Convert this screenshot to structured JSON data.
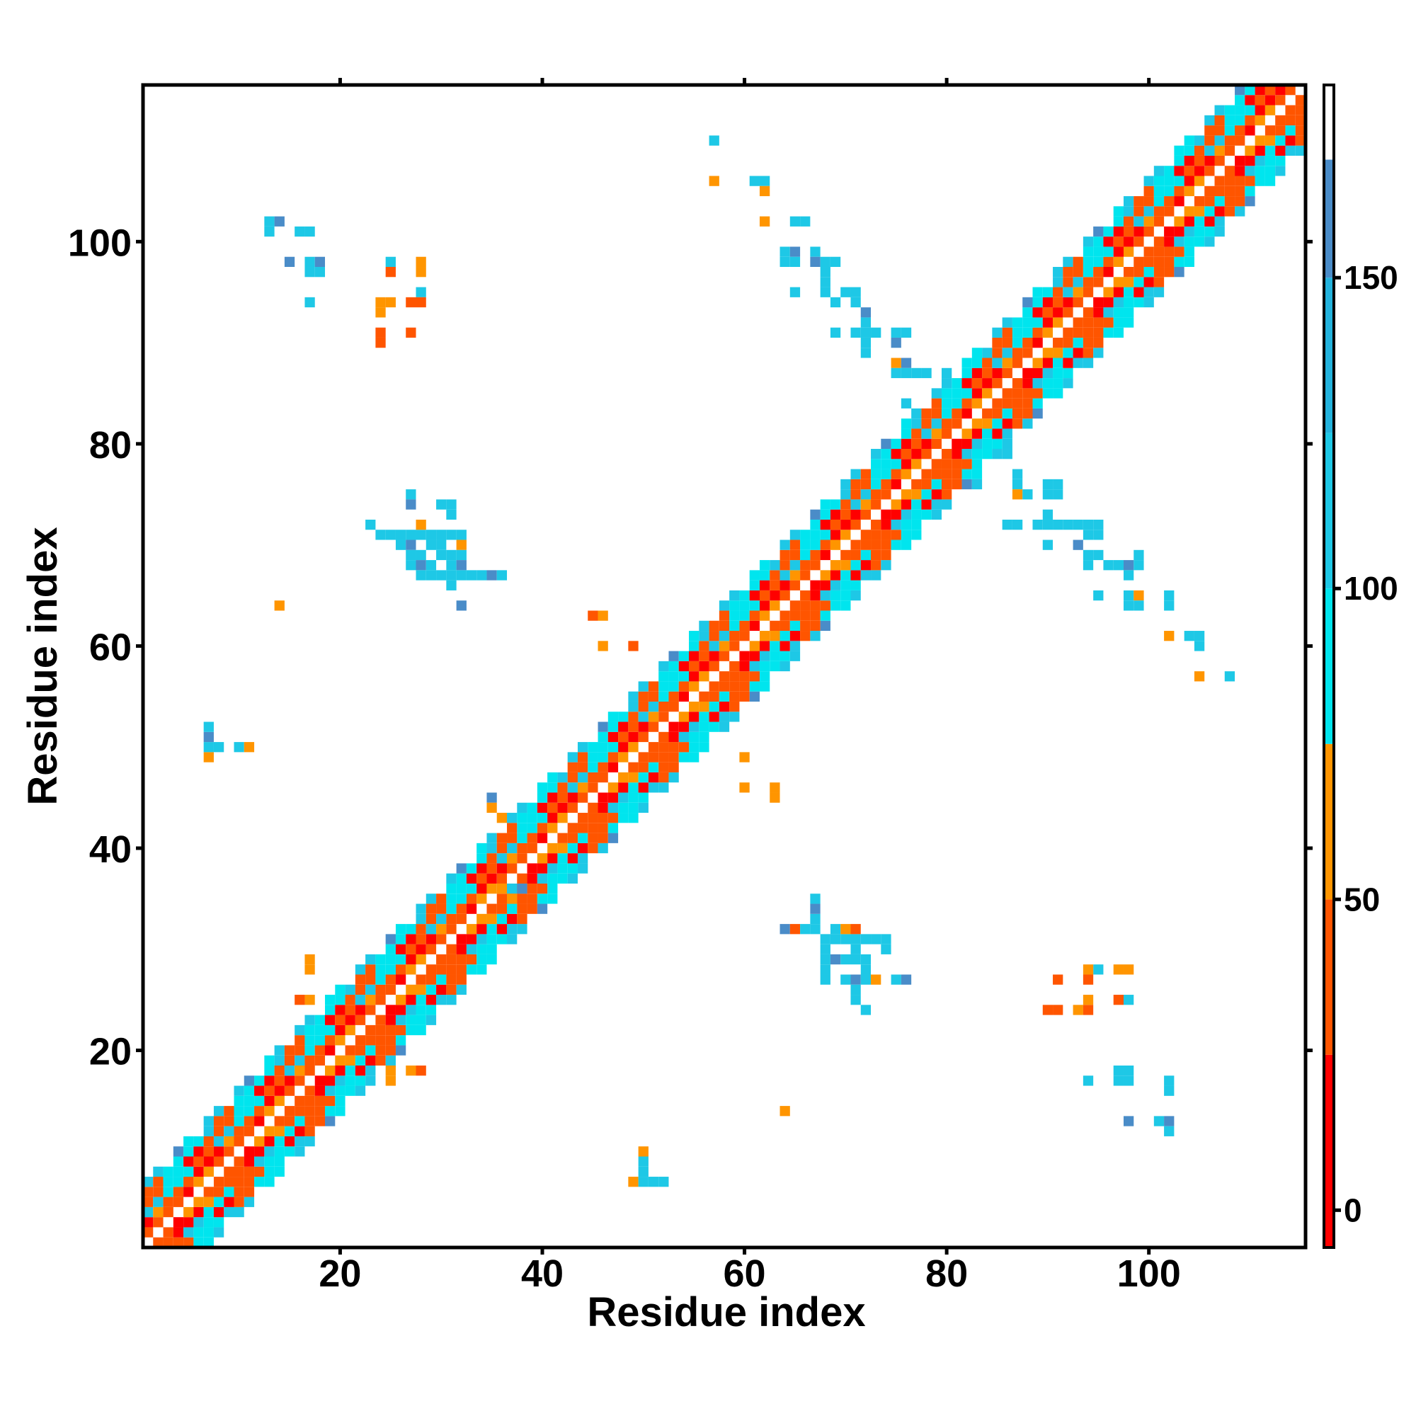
{
  "chart_data": {
    "type": "heatmap",
    "title": "",
    "xlabel": "Residue index",
    "ylabel": "Residue index",
    "x_range": [
      0.5,
      115.5
    ],
    "y_range": [
      0.5,
      115.5
    ],
    "x_ticks": [
      20,
      40,
      60,
      80,
      100
    ],
    "y_ticks": [
      20,
      40,
      60,
      80,
      100
    ],
    "x_tick_labels": [
      "20",
      "40",
      "60",
      "80",
      "100"
    ],
    "y_tick_labels": [
      "20",
      "40",
      "60",
      "80",
      "100"
    ],
    "grid": false,
    "legend": "colorbar-right",
    "colorbar": {
      "range": [
        -6,
        181
      ],
      "ticks": [
        0,
        50,
        100,
        150
      ],
      "tick_labels": [
        "0",
        "50",
        "100",
        "150"
      ],
      "bands": [
        {
          "from": -6,
          "to": 25,
          "color": "#ff0000"
        },
        {
          "from": 25,
          "to": 50,
          "color": "#ff5500"
        },
        {
          "from": 50,
          "to": 75,
          "color": "#ff9500"
        },
        {
          "from": 75,
          "to": 100,
          "color": "#00e5ee"
        },
        {
          "from": 100,
          "to": 125,
          "color": "#1ec8e6"
        },
        {
          "from": 125,
          "to": 150,
          "color": "#23b2dc"
        },
        {
          "from": 150,
          "to": 169,
          "color": "#4a8cc8"
        },
        {
          "from": 169,
          "to": 181,
          "color": "#ffffff"
        }
      ]
    },
    "diagonal_band": {
      "start": 1,
      "end": 115,
      "half_width": 6
    },
    "cells": [
      [
        64,
        32,
        150
      ],
      [
        65,
        32,
        40
      ],
      [
        66,
        32,
        100
      ],
      [
        67,
        32,
        100
      ],
      [
        67,
        33,
        100
      ],
      [
        67,
        34,
        160
      ],
      [
        67,
        35,
        100
      ],
      [
        68,
        31,
        110
      ],
      [
        69,
        31,
        100
      ],
      [
        70,
        31,
        100
      ],
      [
        71,
        31,
        100
      ],
      [
        72,
        31,
        110
      ],
      [
        73,
        31,
        100
      ],
      [
        74,
        31,
        100
      ],
      [
        69,
        32,
        110
      ],
      [
        70,
        32,
        60
      ],
      [
        71,
        32,
        40
      ],
      [
        68,
        30,
        110
      ],
      [
        71,
        30,
        100
      ],
      [
        74,
        30,
        100
      ],
      [
        68,
        29,
        100
      ],
      [
        69,
        29,
        150
      ],
      [
        70,
        29,
        110
      ],
      [
        71,
        29,
        100
      ],
      [
        72,
        29,
        110
      ],
      [
        68,
        28,
        100
      ],
      [
        72,
        28,
        100
      ],
      [
        68,
        27,
        100
      ],
      [
        70,
        27,
        100
      ],
      [
        71,
        27,
        160
      ],
      [
        72,
        27,
        100
      ],
      [
        73,
        27,
        60
      ],
      [
        75,
        27,
        110
      ],
      [
        76,
        27,
        150
      ],
      [
        71,
        26,
        100
      ],
      [
        71,
        25,
        110
      ],
      [
        72,
        24,
        100
      ],
      [
        91,
        27,
        30
      ],
      [
        94,
        27,
        40
      ],
      [
        95,
        28,
        100
      ],
      [
        94,
        28,
        60
      ],
      [
        97,
        28,
        50
      ],
      [
        98,
        28,
        60
      ],
      [
        90,
        24,
        40
      ],
      [
        91,
        24,
        40
      ],
      [
        93,
        24,
        60
      ],
      [
        94,
        24,
        40
      ],
      [
        94,
        25,
        60
      ],
      [
        97,
        25,
        30
      ],
      [
        98,
        25,
        100
      ],
      [
        94,
        17,
        100
      ],
      [
        97,
        17,
        100
      ],
      [
        98,
        17,
        100
      ],
      [
        97,
        18,
        110
      ],
      [
        98,
        18,
        100
      ],
      [
        102,
        17,
        100
      ],
      [
        102,
        16,
        110
      ],
      [
        98,
        13,
        150
      ],
      [
        101,
        13,
        100
      ],
      [
        102,
        13,
        150
      ],
      [
        102,
        12,
        100
      ],
      [
        64,
        14,
        60
      ],
      [
        50,
        10,
        60
      ],
      [
        50,
        9,
        100
      ],
      [
        49,
        7,
        60
      ],
      [
        50,
        7,
        100
      ],
      [
        51,
        7,
        110
      ],
      [
        52,
        7,
        110
      ],
      [
        50,
        8,
        100
      ],
      [
        60,
        49,
        50
      ],
      [
        60,
        46,
        60
      ],
      [
        63,
        46,
        50
      ],
      [
        63,
        45,
        50
      ],
      [
        45,
        63,
        40
      ],
      [
        46,
        63,
        50
      ],
      [
        46,
        60,
        60
      ],
      [
        49,
        60,
        40
      ],
      [
        14,
        64,
        60
      ],
      [
        7,
        49,
        60
      ],
      [
        7,
        50,
        100
      ],
      [
        7,
        51,
        150
      ],
      [
        7,
        52,
        110
      ],
      [
        8,
        50,
        100
      ],
      [
        10,
        50,
        110
      ],
      [
        11,
        50,
        60
      ],
      [
        27,
        75,
        100
      ],
      [
        27,
        74,
        150
      ],
      [
        30,
        74,
        100
      ],
      [
        31,
        74,
        100
      ],
      [
        31,
        73,
        110
      ],
      [
        23,
        72,
        100
      ],
      [
        24,
        71,
        100
      ],
      [
        25,
        71,
        110
      ],
      [
        26,
        71,
        100
      ],
      [
        27,
        71,
        100
      ],
      [
        28,
        71,
        110
      ],
      [
        29,
        71,
        100
      ],
      [
        30,
        71,
        100
      ],
      [
        31,
        71,
        100
      ],
      [
        32,
        71,
        100
      ],
      [
        26,
        70,
        100
      ],
      [
        27,
        70,
        150
      ],
      [
        29,
        70,
        100
      ],
      [
        30,
        70,
        100
      ],
      [
        32,
        70,
        60
      ],
      [
        27,
        69,
        110
      ],
      [
        28,
        69,
        100
      ],
      [
        30,
        69,
        110
      ],
      [
        31,
        69,
        100
      ],
      [
        32,
        69,
        100
      ],
      [
        27,
        68,
        100
      ],
      [
        28,
        68,
        150
      ],
      [
        29,
        68,
        100
      ],
      [
        31,
        68,
        100
      ],
      [
        32,
        68,
        150
      ],
      [
        28,
        67,
        100
      ],
      [
        29,
        67,
        100
      ],
      [
        30,
        67,
        110
      ],
      [
        31,
        67,
        100
      ],
      [
        32,
        67,
        110
      ],
      [
        33,
        67,
        110
      ],
      [
        34,
        67,
        100
      ],
      [
        35,
        67,
        150
      ],
      [
        36,
        67,
        110
      ],
      [
        31,
        66,
        100
      ],
      [
        32,
        64,
        150
      ],
      [
        28,
        72,
        60
      ],
      [
        13,
        102,
        100
      ],
      [
        14,
        102,
        150
      ],
      [
        16,
        101,
        100
      ],
      [
        17,
        101,
        100
      ],
      [
        13,
        101,
        100
      ],
      [
        15,
        98,
        150
      ],
      [
        17,
        98,
        100
      ],
      [
        18,
        98,
        150
      ],
      [
        17,
        97,
        100
      ],
      [
        18,
        97,
        100
      ],
      [
        17,
        94,
        100
      ],
      [
        25,
        98,
        100
      ],
      [
        25,
        97,
        30
      ],
      [
        28,
        98,
        50
      ],
      [
        28,
        97,
        50
      ],
      [
        28,
        95,
        100
      ],
      [
        24,
        94,
        50
      ],
      [
        25,
        94,
        50
      ],
      [
        27,
        94,
        40
      ],
      [
        28,
        94,
        40
      ],
      [
        24,
        93,
        60
      ],
      [
        24,
        91,
        40
      ],
      [
        24,
        90,
        40
      ],
      [
        27,
        91,
        30
      ],
      [
        57,
        110,
        100
      ],
      [
        57,
        106,
        60
      ],
      [
        61,
        106,
        100
      ],
      [
        62,
        106,
        100
      ],
      [
        62,
        105,
        60
      ],
      [
        62,
        102,
        60
      ],
      [
        65,
        102,
        100
      ],
      [
        66,
        102,
        100
      ],
      [
        64,
        99,
        100
      ],
      [
        64,
        98,
        100
      ],
      [
        65,
        99,
        150
      ],
      [
        65,
        98,
        110
      ],
      [
        67,
        99,
        100
      ],
      [
        67,
        98,
        150
      ],
      [
        68,
        98,
        100
      ],
      [
        69,
        98,
        100
      ],
      [
        68,
        97,
        100
      ],
      [
        65,
        95,
        100
      ],
      [
        68,
        96,
        100
      ],
      [
        68,
        95,
        100
      ],
      [
        69,
        94,
        100
      ],
      [
        70,
        95,
        100
      ],
      [
        71,
        95,
        100
      ],
      [
        71,
        94,
        100
      ],
      [
        72,
        93,
        150
      ],
      [
        72,
        92,
        110
      ],
      [
        72,
        91,
        100
      ],
      [
        73,
        91,
        100
      ],
      [
        69,
        91,
        100
      ],
      [
        71,
        91,
        100
      ],
      [
        72,
        90,
        100
      ],
      [
        75,
        91,
        110
      ],
      [
        75,
        90,
        150
      ],
      [
        76,
        91,
        100
      ],
      [
        72,
        89,
        100
      ],
      [
        75,
        88,
        60
      ],
      [
        76,
        88,
        150
      ],
      [
        75,
        87,
        100
      ],
      [
        76,
        87,
        100
      ],
      [
        77,
        87,
        100
      ],
      [
        78,
        87,
        110
      ],
      [
        80,
        87,
        100
      ],
      [
        76,
        84,
        100
      ],
      [
        83,
        76,
        110
      ],
      [
        86,
        79,
        100
      ],
      [
        87,
        76,
        100
      ],
      [
        87,
        77,
        100
      ],
      [
        87,
        75,
        60
      ],
      [
        88,
        75,
        110
      ],
      [
        90,
        76,
        100
      ],
      [
        91,
        76,
        110
      ],
      [
        90,
        75,
        110
      ],
      [
        91,
        75,
        100
      ],
      [
        86,
        72,
        100
      ],
      [
        87,
        72,
        100
      ],
      [
        89,
        72,
        100
      ],
      [
        90,
        72,
        100
      ],
      [
        90,
        73,
        110
      ],
      [
        91,
        72,
        100
      ],
      [
        92,
        72,
        100
      ],
      [
        93,
        72,
        100
      ],
      [
        94,
        72,
        110
      ],
      [
        95,
        72,
        100
      ],
      [
        90,
        70,
        110
      ],
      [
        94,
        71,
        110
      ],
      [
        95,
        71,
        100
      ],
      [
        93,
        70,
        150
      ],
      [
        94,
        69,
        100
      ],
      [
        95,
        69,
        110
      ],
      [
        94,
        68,
        110
      ],
      [
        96,
        68,
        100
      ],
      [
        97,
        68,
        100
      ],
      [
        98,
        68,
        150
      ],
      [
        99,
        68,
        100
      ],
      [
        99,
        69,
        100
      ],
      [
        98,
        67,
        110
      ],
      [
        95,
        65,
        100
      ],
      [
        98,
        65,
        100
      ],
      [
        99,
        65,
        60
      ],
      [
        98,
        64,
        100
      ],
      [
        99,
        64,
        100
      ],
      [
        102,
        65,
        100
      ],
      [
        102,
        64,
        100
      ],
      [
        102,
        61,
        60
      ],
      [
        104,
        61,
        100
      ],
      [
        105,
        61,
        100
      ],
      [
        105,
        60,
        100
      ],
      [
        105,
        57,
        60
      ],
      [
        108,
        57,
        100
      ],
      [
        27,
        18,
        60
      ],
      [
        28,
        18,
        40
      ],
      [
        25,
        17,
        50
      ],
      [
        25,
        18,
        60
      ],
      [
        17,
        29,
        60
      ],
      [
        17,
        28,
        60
      ],
      [
        36,
        36,
        60
      ],
      [
        37,
        36,
        110
      ],
      [
        38,
        36,
        150
      ],
      [
        37,
        35,
        60
      ],
      [
        35,
        45,
        150
      ],
      [
        35,
        44,
        60
      ],
      [
        36,
        43,
        60
      ],
      [
        17,
        25,
        50
      ],
      [
        16,
        25,
        40
      ]
    ]
  }
}
